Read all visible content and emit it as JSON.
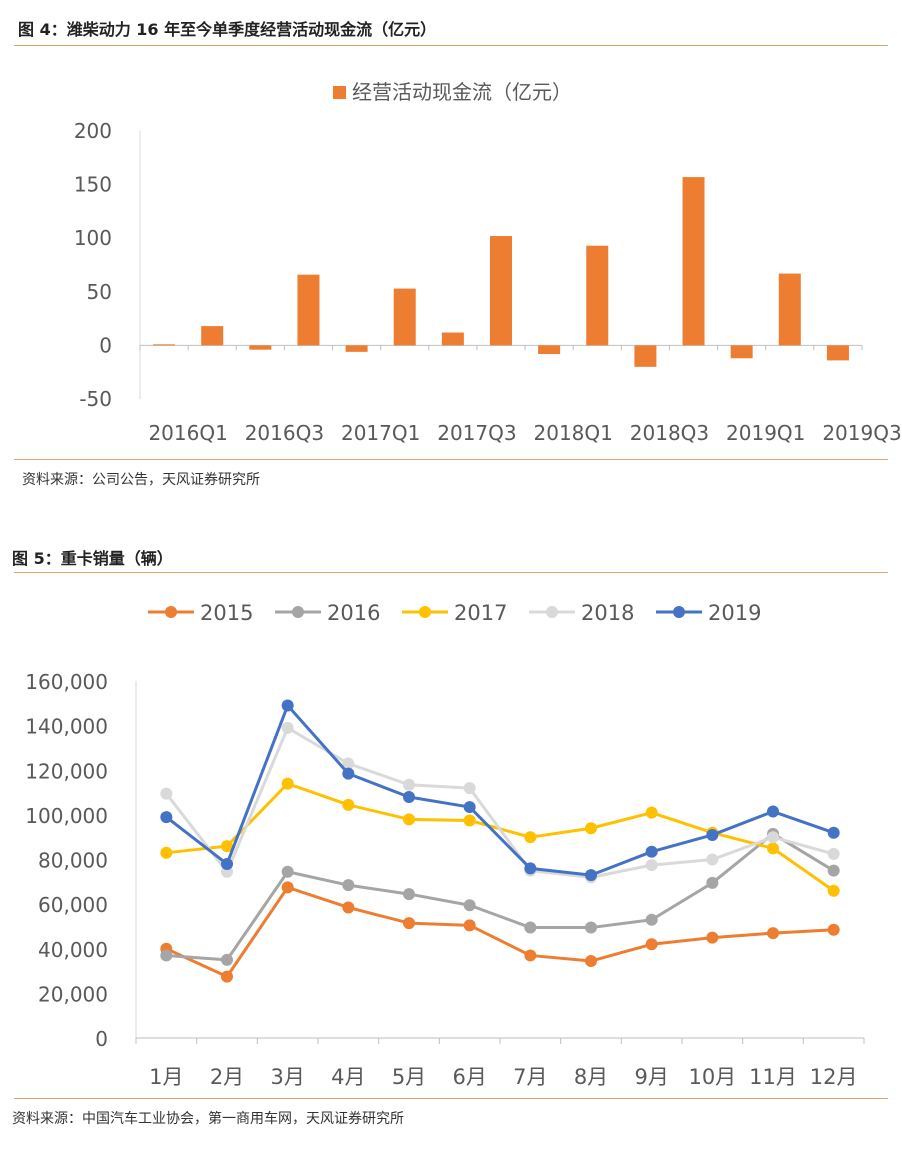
{
  "figure4": {
    "title": "图 4：潍柴动力 16 年至今单季度经营活动现金流（亿元）",
    "source": "资料来源：公司公告，天风证券研究所"
  },
  "figure5": {
    "title": "图 5：重卡销量（辆）",
    "source": "资料来源：中国汽车工业协会，第一商用车网，天风证券研究所"
  },
  "colors": {
    "accent": "#ED7D31",
    "rule": "#E2A16E"
  },
  "chart_data": [
    {
      "type": "bar",
      "title": "",
      "legend": [
        "经营活动现金流（亿元）"
      ],
      "legend_position": "top",
      "categories": [
        "2016Q1",
        "2016Q2",
        "2016Q3",
        "2016Q4",
        "2017Q1",
        "2017Q2",
        "2017Q3",
        "2017Q4",
        "2018Q1",
        "2018Q2",
        "2018Q3",
        "2018Q4",
        "2019Q1",
        "2019Q2",
        "2019Q3"
      ],
      "category_labels_shown": [
        "2016Q1",
        "2016Q3",
        "2017Q1",
        "2017Q3",
        "2018Q1",
        "2018Q3",
        "2019Q1",
        "2019Q3"
      ],
      "values": [
        1,
        18,
        -4,
        66,
        -6,
        53,
        12,
        102,
        -8,
        93,
        -20,
        157,
        -12,
        67,
        -14
      ],
      "ylim": [
        -50,
        200
      ],
      "yticks": [
        -50,
        0,
        50,
        100,
        150,
        200
      ],
      "color": "#ED7D31",
      "xlabel": "",
      "ylabel": ""
    },
    {
      "type": "line",
      "title": "",
      "legend_position": "top",
      "categories": [
        "1月",
        "2月",
        "3月",
        "4月",
        "5月",
        "6月",
        "7月",
        "8月",
        "9月",
        "10月",
        "11月",
        "12月"
      ],
      "ylim": [
        0,
        160000
      ],
      "yticks": [
        0,
        20000,
        40000,
        60000,
        80000,
        100000,
        120000,
        140000,
        160000
      ],
      "ytick_labels": [
        "0",
        "20,000",
        "40,000",
        "60,000",
        "80,000",
        "100,000",
        "120,000",
        "140,000",
        "160,000"
      ],
      "series": [
        {
          "name": "2015",
          "color": "#ED7D31",
          "values": [
            40000,
            27500,
            67500,
            58500,
            51500,
            50500,
            37000,
            34500,
            42000,
            45000,
            47000,
            48500
          ]
        },
        {
          "name": "2016",
          "color": "#A5A5A5",
          "values": [
            37000,
            35000,
            74500,
            68500,
            64500,
            59500,
            49500,
            49500,
            53000,
            69500,
            91500,
            75000
          ]
        },
        {
          "name": "2017",
          "color": "#FFC000",
          "values": [
            83000,
            86000,
            114000,
            104500,
            98000,
            97500,
            90000,
            94000,
            101000,
            92000,
            85000,
            66000
          ]
        },
        {
          "name": "2018",
          "color": "#D9D9D9",
          "values": [
            109500,
            74500,
            139000,
            123000,
            113500,
            112000,
            75000,
            72000,
            77500,
            80000,
            90000,
            82500
          ]
        },
        {
          "name": "2019",
          "color": "#4472C4",
          "values": [
            99000,
            78000,
            149000,
            118500,
            108000,
            103500,
            76000,
            73000,
            83500,
            91000,
            101500,
            92000
          ]
        }
      ],
      "xlabel": "",
      "ylabel": ""
    }
  ]
}
